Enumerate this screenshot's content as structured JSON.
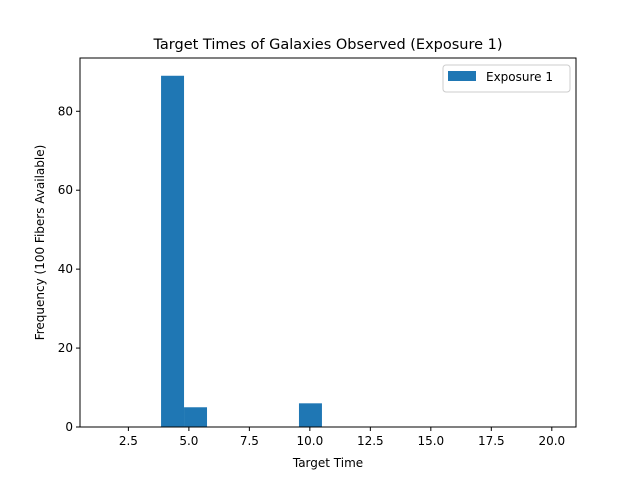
{
  "chart_data": {
    "type": "bar",
    "title": "Target Times of Galaxies Observed (Exposure 1)",
    "xlabel": "Target Time",
    "ylabel": "Frequency (100 Fibers Available)",
    "xlim": [
      0.5,
      21.0
    ],
    "ylim": [
      0,
      93.5
    ],
    "xticks": [
      2.5,
      5.0,
      7.5,
      10.0,
      12.5,
      15.0,
      17.5,
      20.0
    ],
    "xtick_labels": [
      "2.5",
      "5.0",
      "7.5",
      "10.0",
      "12.5",
      "15.0",
      "17.5",
      "20.0"
    ],
    "yticks": [
      0,
      20,
      40,
      60,
      80
    ],
    "ytick_labels": [
      "0",
      "20",
      "40",
      "60",
      "80"
    ],
    "bin_edges": [
      1.0,
      1.95,
      2.9,
      3.85,
      4.8,
      5.75,
      6.7,
      7.65,
      8.6,
      9.55,
      10.5,
      11.45,
      12.4,
      13.35,
      14.3,
      15.25,
      16.2,
      17.15,
      18.1,
      19.05,
      20.0
    ],
    "series": [
      {
        "name": "Exposure 1",
        "color": "#1f77b4",
        "counts": [
          0,
          0,
          0,
          89,
          5,
          0,
          0,
          0,
          0,
          6,
          0,
          0,
          0,
          0,
          0,
          0,
          0,
          0,
          0,
          0
        ]
      }
    ],
    "legend_position": "top-right",
    "grid": false
  }
}
